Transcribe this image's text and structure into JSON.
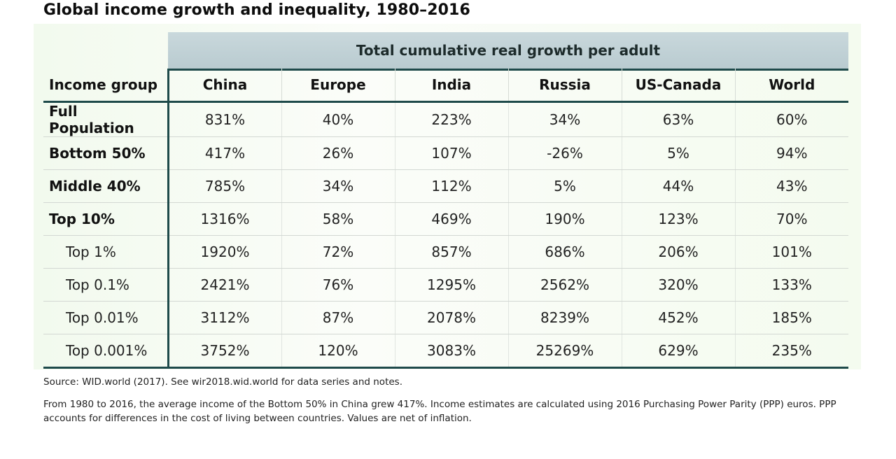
{
  "title": "Global income growth and inequality, 1980–2016",
  "super_header": "Total cumulative real growth per adult",
  "table": {
    "row_header": "Income group",
    "columns": [
      "China",
      "Europe",
      "India",
      "Russia",
      "US-Canada",
      "World"
    ],
    "rows": [
      {
        "group": "Full Population",
        "level": "main",
        "values": [
          "831%",
          "40%",
          "223%",
          "34%",
          "63%",
          "60%"
        ]
      },
      {
        "group": "Bottom 50%",
        "level": "main",
        "values": [
          "417%",
          "26%",
          "107%",
          "-26%",
          "5%",
          "94%"
        ]
      },
      {
        "group": "Middle 40%",
        "level": "main",
        "values": [
          "785%",
          "34%",
          "112%",
          "5%",
          "44%",
          "43%"
        ]
      },
      {
        "group": "Top 10%",
        "level": "main",
        "values": [
          "1316%",
          "58%",
          "469%",
          "190%",
          "123%",
          "70%"
        ]
      },
      {
        "group": "Top 1%",
        "level": "sub",
        "values": [
          "1920%",
          "72%",
          "857%",
          "686%",
          "206%",
          "101%"
        ]
      },
      {
        "group": "Top 0.1%",
        "level": "sub",
        "values": [
          "2421%",
          "76%",
          "1295%",
          "2562%",
          "320%",
          "133%"
        ]
      },
      {
        "group": "Top 0.01%",
        "level": "sub",
        "values": [
          "3112%",
          "87%",
          "2078%",
          "8239%",
          "452%",
          "185%"
        ]
      },
      {
        "group": "Top 0.001%",
        "level": "sub",
        "values": [
          "3752%",
          "120%",
          "3083%",
          "25269%",
          "629%",
          "235%"
        ]
      }
    ]
  },
  "source": "Source: WID.world (2017). See wir2018.wid.world for data series and notes.",
  "note": "From 1980 to 2016, the average income of the Bottom 50% in China grew 417%. Income estimates are calculated using 2016 Purchasing Power Parity (PPP) euros. PPP accounts for differences in the cost of living between countries. Values are net of inflation.",
  "colors": {
    "rule": "#1e4a4a",
    "header_band": "#c9d8dc",
    "panel": "#f2faee"
  }
}
